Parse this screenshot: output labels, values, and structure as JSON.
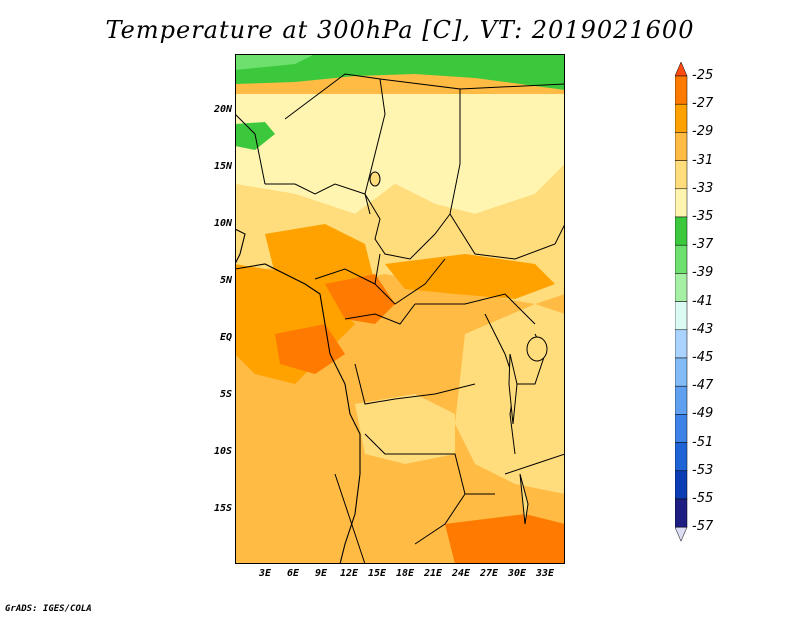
{
  "title": "Temperature at 300hPa [C], VT: 2019021600",
  "credit": "GrADS: IGES/COLA",
  "map": {
    "lat_labels": [
      "20N",
      "15N",
      "10N",
      "5N",
      "EQ",
      "5S",
      "10S",
      "15S"
    ],
    "lon_labels": [
      "3E",
      "6E",
      "9E",
      "12E",
      "15E",
      "18E",
      "21E",
      "24E",
      "27E",
      "30E",
      "33E"
    ],
    "lat_range": [
      -20,
      25
    ],
    "lon_range": [
      0,
      35
    ]
  },
  "colorbar": {
    "labels": [
      "-25",
      "-27",
      "-29",
      "-31",
      "-33",
      "-35",
      "-37",
      "-39",
      "-41",
      "-43",
      "-45",
      "-47",
      "-49",
      "-51",
      "-53",
      "-55",
      "-57"
    ],
    "colors": [
      "#ff4a10",
      "#ff7a00",
      "#ffa200",
      "#ffbb44",
      "#ffdc7c",
      "#fff5b0",
      "#3cc83c",
      "#6ee06e",
      "#a6f0a6",
      "#dcfaf4",
      "#aad4ff",
      "#82bbf5",
      "#5fa0f0",
      "#3d82e6",
      "#1f64d6",
      "#0a3cb4",
      "#1e1e82"
    ]
  }
}
